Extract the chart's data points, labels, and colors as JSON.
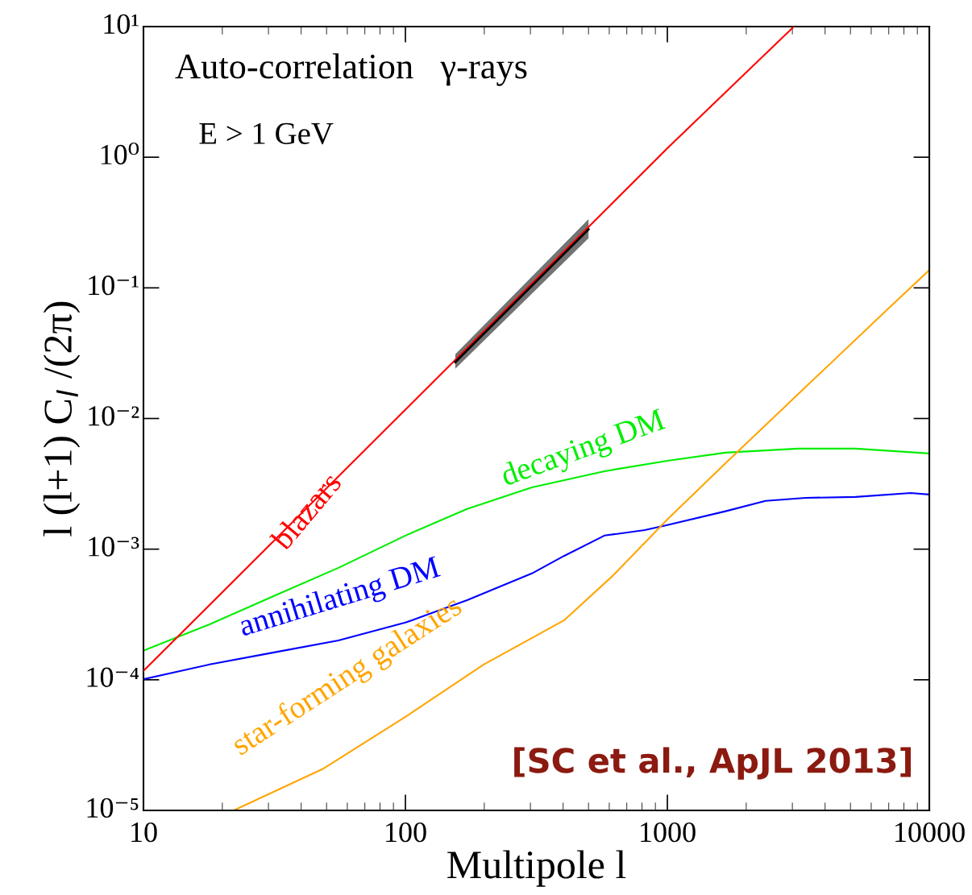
{
  "chart_data": {
    "type": "line",
    "title": "Auto-correlation   γ-rays",
    "xlabel": "Multipole l",
    "ylabel": "l (l+1) C$_{l}$ /(2π)",
    "log": "xy",
    "grid": false,
    "legend": false,
    "xlim": [
      10,
      10000
    ],
    "xticks": [
      10,
      100,
      1000,
      10000
    ],
    "ylim": [
      1e-05,
      10
    ],
    "yticks": [
      {
        "value": 1e-05,
        "label": "10⁻⁵"
      },
      {
        "value": 0.0001,
        "label": "10⁻⁴"
      },
      {
        "value": 0.001,
        "label": "10⁻³"
      },
      {
        "value": 0.01,
        "label": "10⁻²"
      },
      {
        "value": 0.1,
        "label": "10⁻¹"
      },
      {
        "value": 1,
        "label": "10⁰"
      },
      {
        "value": 10,
        "label": "10¹"
      }
    ],
    "annotations": [
      "E > 1 GeV",
      "[SC et al., ApJL 2013]"
    ],
    "series": [
      {
        "name": "blazars",
        "color": "#ff0000",
        "x": [
          10,
          100,
          1000,
          3040
        ],
        "values": [
          0.000117,
          0.0117,
          1.17,
          10
        ]
      },
      {
        "color": "#000000",
        "x": [
          155,
          500
        ],
        "values": [
          0.027,
          0.28
        ],
        "lower": [
          0.024,
          0.24
        ],
        "upper": [
          0.031,
          0.336
        ]
      },
      {
        "name": "decaying DM",
        "color": "#00ee00",
        "x": [
          10,
          17.9,
          31.5,
          55.5,
          100,
          172,
          304,
          575,
          1000,
          1667,
          3160,
          5220,
          10000
        ],
        "values": [
          0.000167,
          0.000266,
          0.000438,
          0.000719,
          0.00127,
          0.00203,
          0.00297,
          0.00395,
          0.00475,
          0.00548,
          0.00588,
          0.00588,
          0.0054
        ]
      },
      {
        "name": "annihilating DM",
        "color": "#0000ff",
        "x": [
          10,
          17.9,
          31.5,
          55.5,
          100,
          172,
          304,
          404,
          575,
          820,
          1000,
          1667,
          2370,
          3380,
          5220,
          8490,
          10000
        ],
        "values": [
          0.000101,
          0.000131,
          0.000162,
          0.0002,
          0.000274,
          0.000407,
          0.000652,
          0.000889,
          0.00127,
          0.0014,
          0.00153,
          0.00195,
          0.00234,
          0.00247,
          0.00251,
          0.00269,
          0.00262
        ]
      },
      {
        "name": "star-forming galaxies",
        "color": "#ffa500",
        "x": [
          22.1,
          48.2,
          100,
          199,
          404,
          618,
          1000,
          1667,
          3380,
          6870,
          10000
        ],
        "values": [
          1e-05,
          2.07e-05,
          5.2e-05,
          0.000131,
          0.000286,
          0.000624,
          0.00169,
          0.00455,
          0.0175,
          0.0676,
          0.137
        ]
      }
    ]
  }
}
